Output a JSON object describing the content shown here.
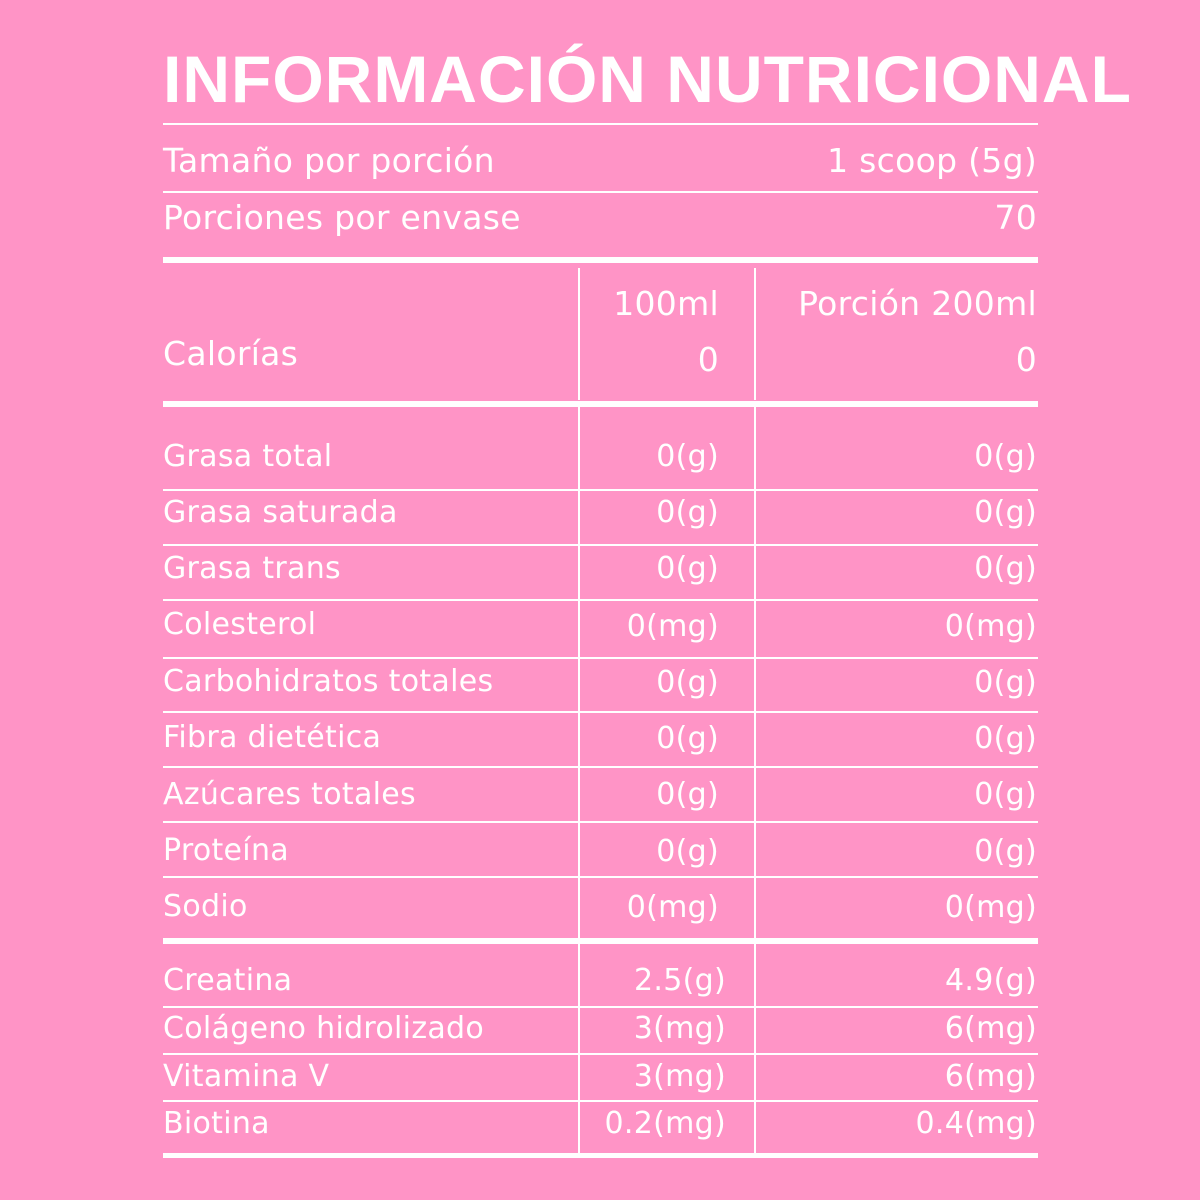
{
  "title": "INFORMACIÓN NUTRICIONAL",
  "serving": {
    "size_label": "Tamaño por porción",
    "size_value": "1 scoop (5g)",
    "count_label": "Porciones por envase",
    "count_value": "70"
  },
  "header": {
    "col1": "100ml",
    "col2": "Porción 200ml",
    "calories_label": "Calorías",
    "calories_col1": "0",
    "calories_col2": "0"
  },
  "nutrients": [
    {
      "name": "Grasa total",
      "per100": "0(g)",
      "per200": "0(g)"
    },
    {
      "name": "Grasa saturada",
      "per100": "0(g)",
      "per200": "0(g)"
    },
    {
      "name": "Grasa trans",
      "per100": "0(g)",
      "per200": "0(g)"
    },
    {
      "name": "Colesterol",
      "per100": "0(mg)",
      "per200": "0(mg)"
    },
    {
      "name": "Carbohidratos totales",
      "per100": "0(g)",
      "per200": "0(g)"
    },
    {
      "name": "Fibra dietética",
      "per100": "0(g)",
      "per200": "0(g)"
    },
    {
      "name": "Azúcares totales",
      "per100": "0(g)",
      "per200": "0(g)"
    },
    {
      "name": "Proteína",
      "per100": "0(g)",
      "per200": "0(g)"
    },
    {
      "name": "Sodio",
      "per100": "0(mg)",
      "per200": "0(mg)"
    }
  ],
  "extras": [
    {
      "name": "Creatina",
      "per100": "2.5(g)",
      "per200": "4.9(g)"
    },
    {
      "name": "Colágeno hidrolizado",
      "per100": "3(mg)",
      "per200": "6(mg)"
    },
    {
      "name": "Vitamina V",
      "per100": "3(mg)",
      "per200": "6(mg)"
    },
    {
      "name": "Biotina",
      "per100": "0.2(mg)",
      "per200": "0.4(mg)"
    }
  ]
}
